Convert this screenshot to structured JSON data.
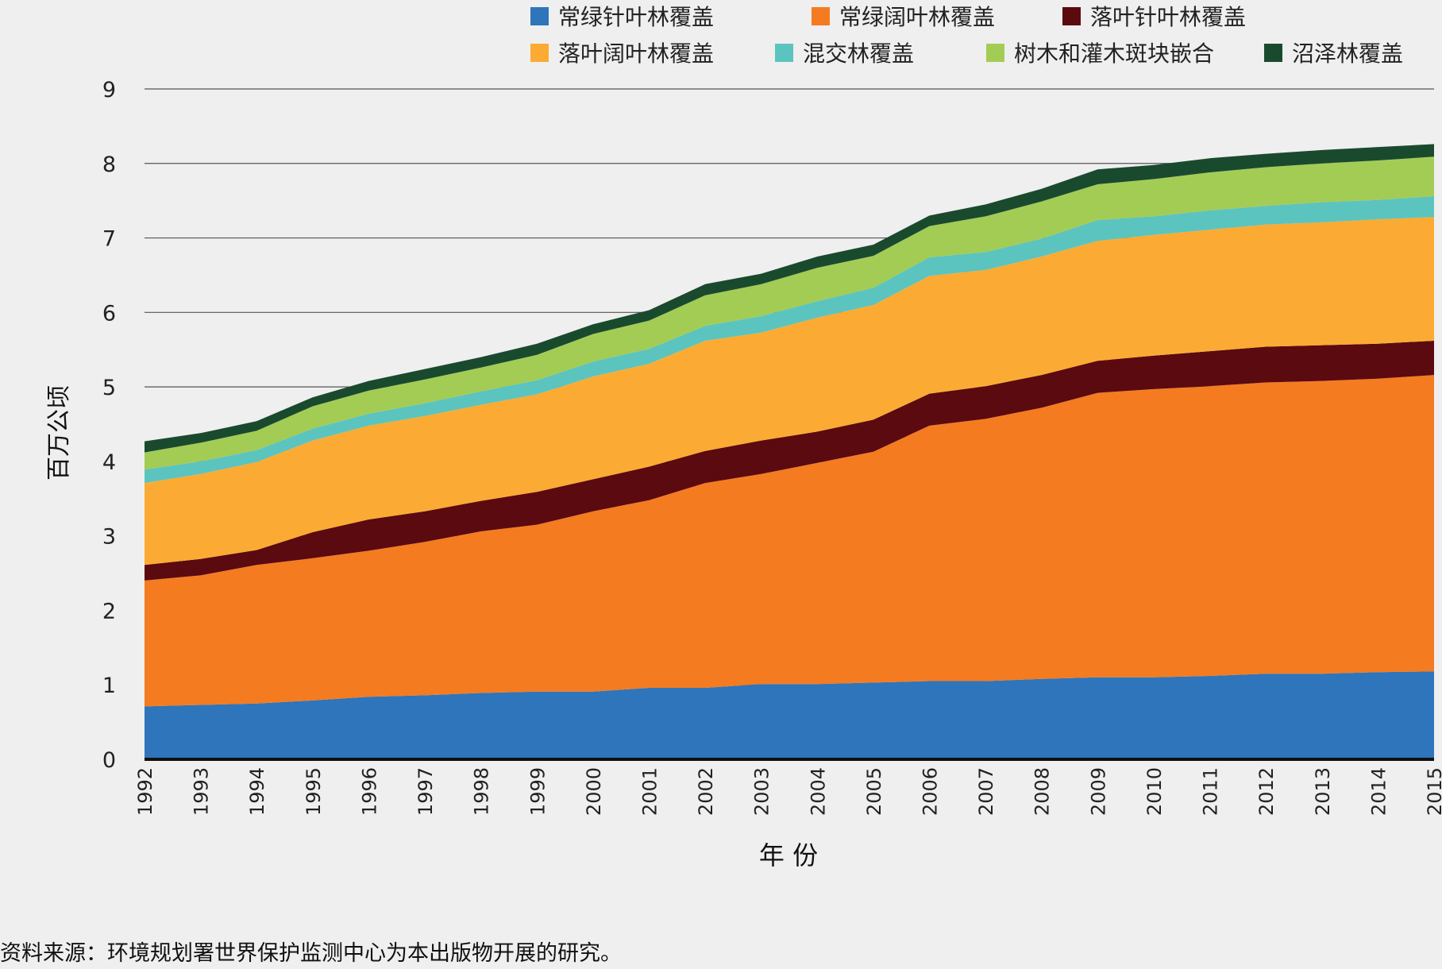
{
  "chart_data": {
    "type": "area",
    "stacked": true,
    "title": "",
    "xlabel": "年 份",
    "ylabel": "百万公顷",
    "ylim": [
      0,
      9
    ],
    "yticks": [
      "0",
      "1",
      "2",
      "3",
      "4",
      "5",
      "6",
      "7",
      "8",
      "9"
    ],
    "grid": true,
    "legend_position": "top",
    "x": [
      "1992",
      "1993",
      "1994",
      "1995",
      "1996",
      "1997",
      "1998",
      "1999",
      "2000",
      "2001",
      "2002",
      "2003",
      "2004",
      "2005",
      "2006",
      "2007",
      "2008",
      "2009",
      "2010",
      "2011",
      "2012",
      "2013",
      "2014",
      "2015"
    ],
    "series": [
      {
        "name": "常绿针叶林覆盖",
        "color": "#2e75bb",
        "values": [
          0.71,
          0.73,
          0.75,
          0.79,
          0.84,
          0.86,
          0.89,
          0.91,
          0.91,
          0.96,
          0.96,
          1.01,
          1.01,
          1.03,
          1.05,
          1.05,
          1.08,
          1.1,
          1.1,
          1.12,
          1.15,
          1.15,
          1.17,
          1.18
        ]
      },
      {
        "name": "常绿阔叶林覆盖",
        "color": "#f47b20",
        "values": [
          1.69,
          1.74,
          1.86,
          1.91,
          1.96,
          2.06,
          2.17,
          2.24,
          2.42,
          2.52,
          2.75,
          2.82,
          2.97,
          3.1,
          3.43,
          3.52,
          3.64,
          3.82,
          3.87,
          3.89,
          3.91,
          3.93,
          3.94,
          3.98
        ]
      },
      {
        "name": "落叶针叶林覆盖",
        "color": "#5b0a10",
        "values": [
          0.21,
          0.22,
          0.2,
          0.35,
          0.42,
          0.41,
          0.41,
          0.44,
          0.43,
          0.45,
          0.43,
          0.45,
          0.42,
          0.43,
          0.43,
          0.44,
          0.44,
          0.43,
          0.45,
          0.47,
          0.48,
          0.48,
          0.47,
          0.46
        ]
      },
      {
        "name": "落叶阔叶林覆盖",
        "color": "#fbab33",
        "values": [
          1.1,
          1.14,
          1.18,
          1.23,
          1.26,
          1.28,
          1.29,
          1.31,
          1.38,
          1.38,
          1.48,
          1.45,
          1.53,
          1.54,
          1.58,
          1.56,
          1.59,
          1.61,
          1.62,
          1.63,
          1.64,
          1.65,
          1.67,
          1.66
        ]
      },
      {
        "name": "混交林覆盖",
        "color": "#5bc4bf",
        "values": [
          0.18,
          0.17,
          0.16,
          0.16,
          0.16,
          0.17,
          0.18,
          0.19,
          0.2,
          0.2,
          0.2,
          0.22,
          0.22,
          0.23,
          0.25,
          0.24,
          0.24,
          0.28,
          0.25,
          0.26,
          0.25,
          0.27,
          0.26,
          0.28
        ]
      },
      {
        "name": "树木和灌木斑块嵌合",
        "color": "#a3cc55",
        "values": [
          0.23,
          0.25,
          0.26,
          0.3,
          0.31,
          0.32,
          0.32,
          0.34,
          0.37,
          0.38,
          0.41,
          0.43,
          0.45,
          0.43,
          0.42,
          0.48,
          0.5,
          0.48,
          0.5,
          0.51,
          0.52,
          0.52,
          0.53,
          0.53
        ]
      },
      {
        "name": "沼泽林覆盖",
        "color": "#1a4a2e",
        "values": [
          0.15,
          0.13,
          0.13,
          0.12,
          0.13,
          0.14,
          0.14,
          0.15,
          0.13,
          0.14,
          0.15,
          0.14,
          0.15,
          0.15,
          0.14,
          0.16,
          0.17,
          0.2,
          0.19,
          0.19,
          0.18,
          0.18,
          0.18,
          0.17
        ]
      }
    ]
  },
  "source_note": "资料来源：环境规划署世界保护监测中心为本出版物开展的研究。"
}
